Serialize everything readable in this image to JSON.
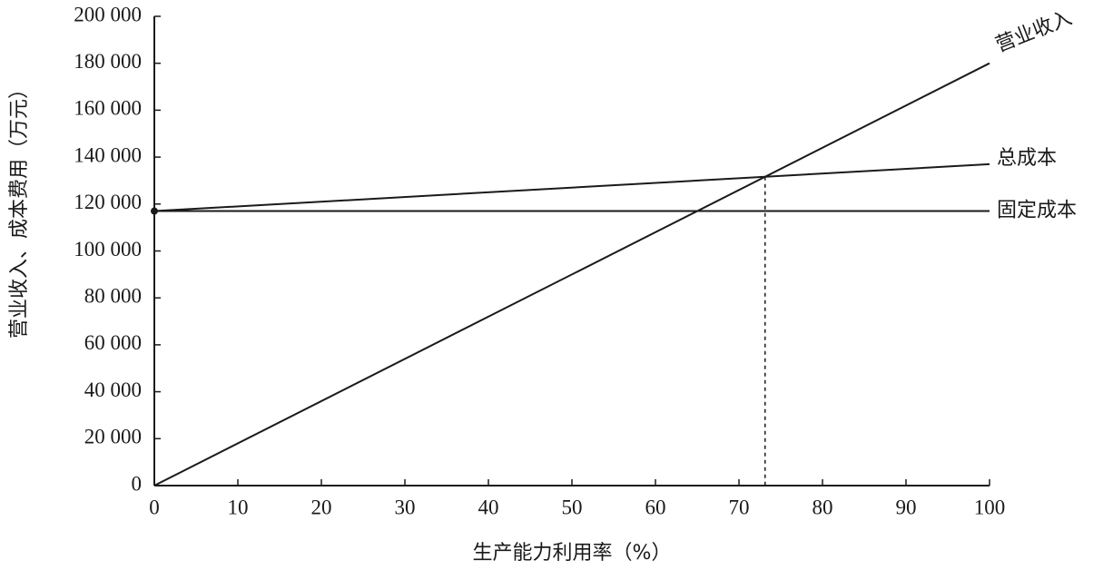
{
  "chart_data": {
    "type": "line",
    "x": [
      0,
      100
    ],
    "series": [
      {
        "name": "营业收入",
        "color": "#1a1a1a",
        "values": [
          0,
          180000
        ]
      },
      {
        "name": "总成本",
        "color": "#1a1a1a",
        "values": [
          117000,
          137000
        ]
      },
      {
        "name": "固定成本",
        "color": "#1a1a1a",
        "values": [
          117000,
          117000
        ]
      }
    ],
    "xlim": [
      0,
      100
    ],
    "xticks": [
      0,
      10,
      20,
      30,
      40,
      50,
      60,
      70,
      80,
      90,
      100
    ],
    "ylim": [
      0,
      200000
    ],
    "yticks": [
      0,
      {
        "value": 20000,
        "label": "20 000"
      },
      {
        "value": 40000,
        "label": "40 000"
      },
      {
        "value": 60000,
        "label": "60 000"
      },
      {
        "value": 80000,
        "label": "80 000"
      },
      {
        "value": 100000,
        "label": "100 000"
      },
      {
        "value": 120000,
        "label": "120 000"
      },
      {
        "value": 140000,
        "label": "140 000"
      },
      {
        "value": 160000,
        "label": "160 000"
      },
      {
        "value": 180000,
        "label": "180 000"
      },
      {
        "value": 200000,
        "label": "200 000"
      }
    ],
    "xlabel": "生产能力利用率（%）",
    "ylabel": "营业收入、成本费用（万元）",
    "breakeven": {
      "x": 73.125,
      "y": 131625
    },
    "start_point": {
      "x": 0,
      "y": 117000
    }
  }
}
